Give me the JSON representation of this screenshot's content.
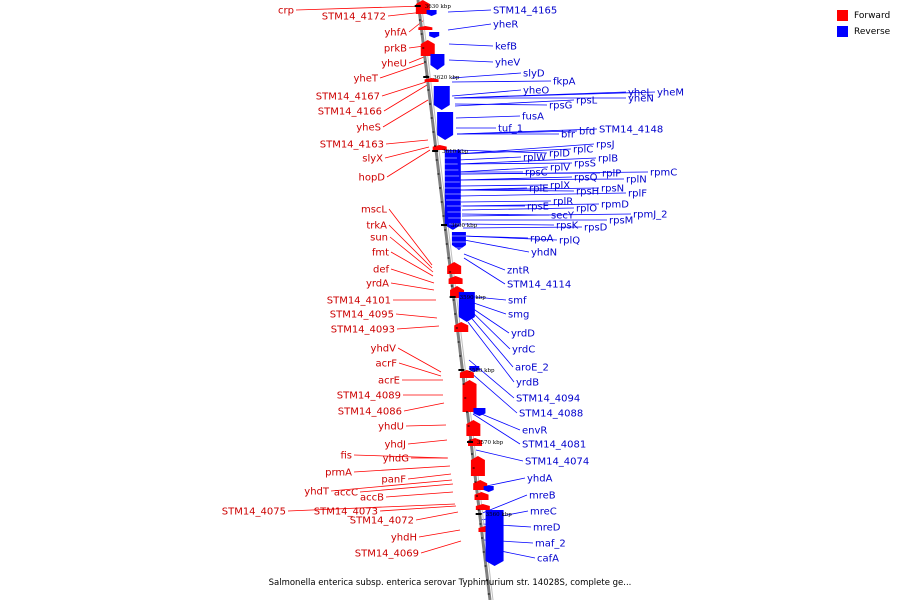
{
  "colors": {
    "forward": "#ff0000",
    "reverse": "#0000ff",
    "backbone": "#7f7f7f",
    "text_forward": "#cc0000",
    "text_reverse": "#0000cc"
  },
  "legend": {
    "forward_label": "Forward",
    "reverse_label": "Reverse"
  },
  "caption": "Salmonella enterica subsp. enterica serovar Typhimurium str. 14028S, complete ge...",
  "scale_labels": [
    "3630 kbp",
    "3620 kbp",
    "3610 kbp",
    "3600 kbp",
    "3590 kbp",
    "3580 kbp",
    "3570 kbp",
    "3560 kbp"
  ],
  "forward_genes": [
    "crp",
    "STM14_4172",
    "yhfA",
    "prkB",
    "yheU",
    "yheT",
    "STM14_4167",
    "STM14_4166",
    "yheS",
    "STM14_4163",
    "slyX",
    "hopD",
    "mscL",
    "trkA",
    "sun",
    "fmt",
    "def",
    "yrdA",
    "STM14_4101",
    "STM14_4095",
    "STM14_4093",
    "yhdV",
    "acrF",
    "acrE",
    "STM14_4089",
    "STM14_4086",
    "yhdU",
    "yhdJ",
    "fis",
    "yhdG",
    "prmA",
    "panF",
    "yhdT",
    "accC",
    "accB",
    "STM14_4075",
    "STM14_4073",
    "STM14_4072",
    "yhdH",
    "STM14_4069"
  ],
  "reverse_genes": [
    "STM14_4165",
    "yheR",
    "kefB",
    "yheV",
    "slyD",
    "fkpA",
    "yheO",
    "yheL",
    "yheM",
    "yheN",
    "rpsG",
    "rpsL",
    "fusA",
    "tuf_1",
    "bfr",
    "bfd",
    "STM14_4148",
    "rplD",
    "rplC",
    "rpsJ",
    "rplW",
    "rpsS",
    "rplB",
    "rpsC",
    "rplV",
    "rplP",
    "rpmC",
    "rpsQ",
    "rplN",
    "rplX",
    "rpsH",
    "rplE",
    "rpsN",
    "rplF",
    "rplR",
    "rpsE",
    "rpmD",
    "rplO",
    "secY",
    "rpmJ_2",
    "rpsM",
    "rpsK",
    "rpsD",
    "rpoA",
    "rplQ",
    "yhdN",
    "zntR",
    "STM14_4114",
    "smf",
    "smg",
    "yrdD",
    "yrdC",
    "aroE_2",
    "yrdB",
    "STM14_4094",
    "STM14_4088",
    "envR",
    "STM14_4081",
    "STM14_4074",
    "yhdA",
    "mreB",
    "mreC",
    "mreD",
    "maf_2",
    "cafA"
  ]
}
